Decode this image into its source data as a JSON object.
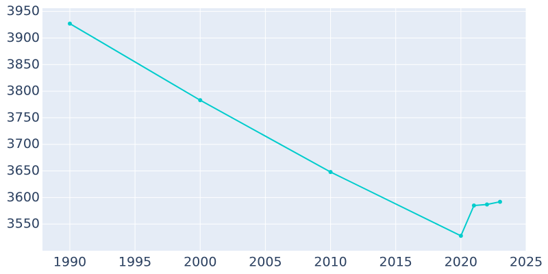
{
  "chart_data": {
    "type": "line",
    "x": [
      1990,
      2000,
      2010,
      2020,
      2021,
      2022,
      2023
    ],
    "series": [
      {
        "color": "#00cccc",
        "values": [
          3927,
          3783,
          3648,
          3528,
          3585,
          3587,
          3592
        ]
      }
    ],
    "xlim": [
      1987.9,
      2025
    ],
    "xticks": [
      1990,
      1995,
      2000,
      2005,
      2010,
      2015,
      2020,
      2025
    ],
    "ylim": [
      3500,
      3956
    ],
    "yticks": [
      3550,
      3600,
      3650,
      3700,
      3750,
      3800,
      3850,
      3900,
      3950
    ],
    "grid": true
  }
}
